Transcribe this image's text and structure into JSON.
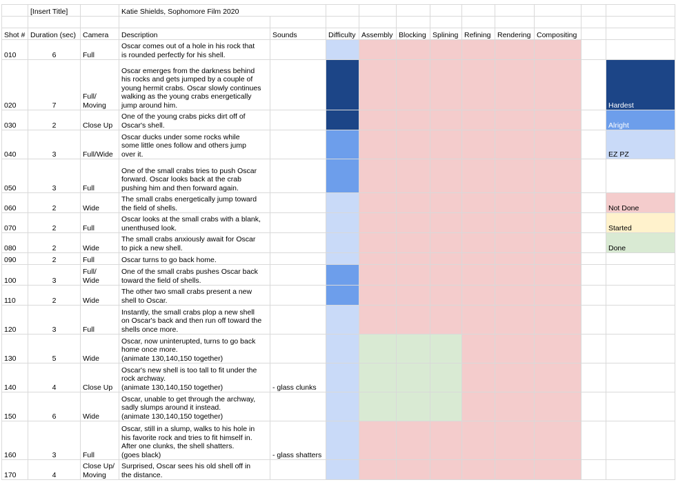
{
  "title_cell": "[Insert Title]",
  "author_cell": "Katie Shields, Sophomore Film 2020",
  "headers": [
    "Shot #",
    "Duration (sec)",
    "Camera",
    "Description",
    "Sounds",
    "Difficulty",
    "Assembly",
    "Blocking",
    "Splining",
    "Refining",
    "Rendering",
    "Compositing"
  ],
  "colors": {
    "easy": "#c9daf8",
    "alright": "#6d9eeb",
    "hardest": "#1c4587",
    "not_done": "#f4cccc",
    "started": "#fff2cc",
    "done": "#d9ead3"
  },
  "legend": {
    "hardest": "Hardest",
    "alright": "Alright",
    "ez": "EZ PZ",
    "not_done": "Not Done",
    "started": "Started",
    "done": "Done"
  },
  "shots": [
    {
      "shot": "010",
      "duration": "6",
      "camera": "Full",
      "description": "Oscar comes out of a hole in his rock that\nis rounded perfectly for his shell.",
      "sounds": ""
    },
    {
      "shot": "020",
      "duration": "7",
      "camera": "Full/\nMoving",
      "description": "Oscar emerges from the darkness behind\nhis rocks and gets jumped by a couple of\nyoung hermit crabs. Oscar slowly continues\nwalking as the young crabs energetically\njump around him.",
      "sounds": ""
    },
    {
      "shot": "030",
      "duration": "2",
      "camera": "Close Up",
      "description": "One of the young crabs picks dirt off of\nOscar's shell.",
      "sounds": ""
    },
    {
      "shot": "040",
      "duration": "3",
      "camera": "Full/Wide",
      "description": "Oscar ducks under some rocks while\nsome little ones follow and others jump\nover it.",
      "sounds": ""
    },
    {
      "shot": "050",
      "duration": "3",
      "camera": "Full",
      "description": "One of the small crabs tries to push Oscar\nforward. Oscar looks back at the crab\npushing him and then forward again.",
      "sounds": ""
    },
    {
      "shot": "060",
      "duration": "2",
      "camera": "Wide",
      "description": "The small crabs energetically jump toward\nthe field of shells.",
      "sounds": ""
    },
    {
      "shot": "070",
      "duration": "2",
      "camera": "Full",
      "description": "Oscar looks at the small crabs with a blank,\nunenthused look.",
      "sounds": ""
    },
    {
      "shot": "080",
      "duration": "2",
      "camera": "Wide",
      "description": "The small crabs anxiously await for Oscar\nto pick a new shell.",
      "sounds": ""
    },
    {
      "shot": "090",
      "duration": "2",
      "camera": "Full",
      "description": "Oscar turns to go back home.",
      "sounds": ""
    },
    {
      "shot": "100",
      "duration": "3",
      "camera": "Full/\nWide",
      "description": "One of the small crabs pushes Oscar back\ntoward the field of shells.",
      "sounds": ""
    },
    {
      "shot": "110",
      "duration": "2",
      "camera": "Wide",
      "description": "The other two small crabs present a new\nshell to Oscar.",
      "sounds": ""
    },
    {
      "shot": "120",
      "duration": "3",
      "camera": "Full",
      "description": "Instantly, the small crabs plop a new shell\non Oscar's back and then run off toward the\nshells once more.",
      "sounds": ""
    },
    {
      "shot": "130",
      "duration": "5",
      "camera": "Wide",
      "description": "Oscar, now uninterupted, turns to go back\nhome once more.\n(animate 130,140,150 together)",
      "sounds": ""
    },
    {
      "shot": "140",
      "duration": "4",
      "camera": "Close Up",
      "description": "Oscar's new shell is too tall to fit under the\nrock archway.\n(animate 130,140,150 together)",
      "sounds": "- glass clunks"
    },
    {
      "shot": "150",
      "duration": "6",
      "camera": "Wide",
      "description": "Oscar, unable to get through the archway,\nsadly slumps around it instead.\n(animate 130,140,150 together)",
      "sounds": ""
    },
    {
      "shot": "160",
      "duration": "3",
      "camera": "Full",
      "description": "Oscar, still in a slump, walks to his hole in\nhis favorite rock and tries to fit himself in.\nAfter one clunks, the shell shatters.\n(goes black)",
      "sounds": "- glass shatters"
    },
    {
      "shot": "170",
      "duration": "4",
      "camera": "Close Up/\nMoving",
      "description": "Surprised, Oscar sees his old shell off in\nthe distance.",
      "sounds": ""
    }
  ]
}
